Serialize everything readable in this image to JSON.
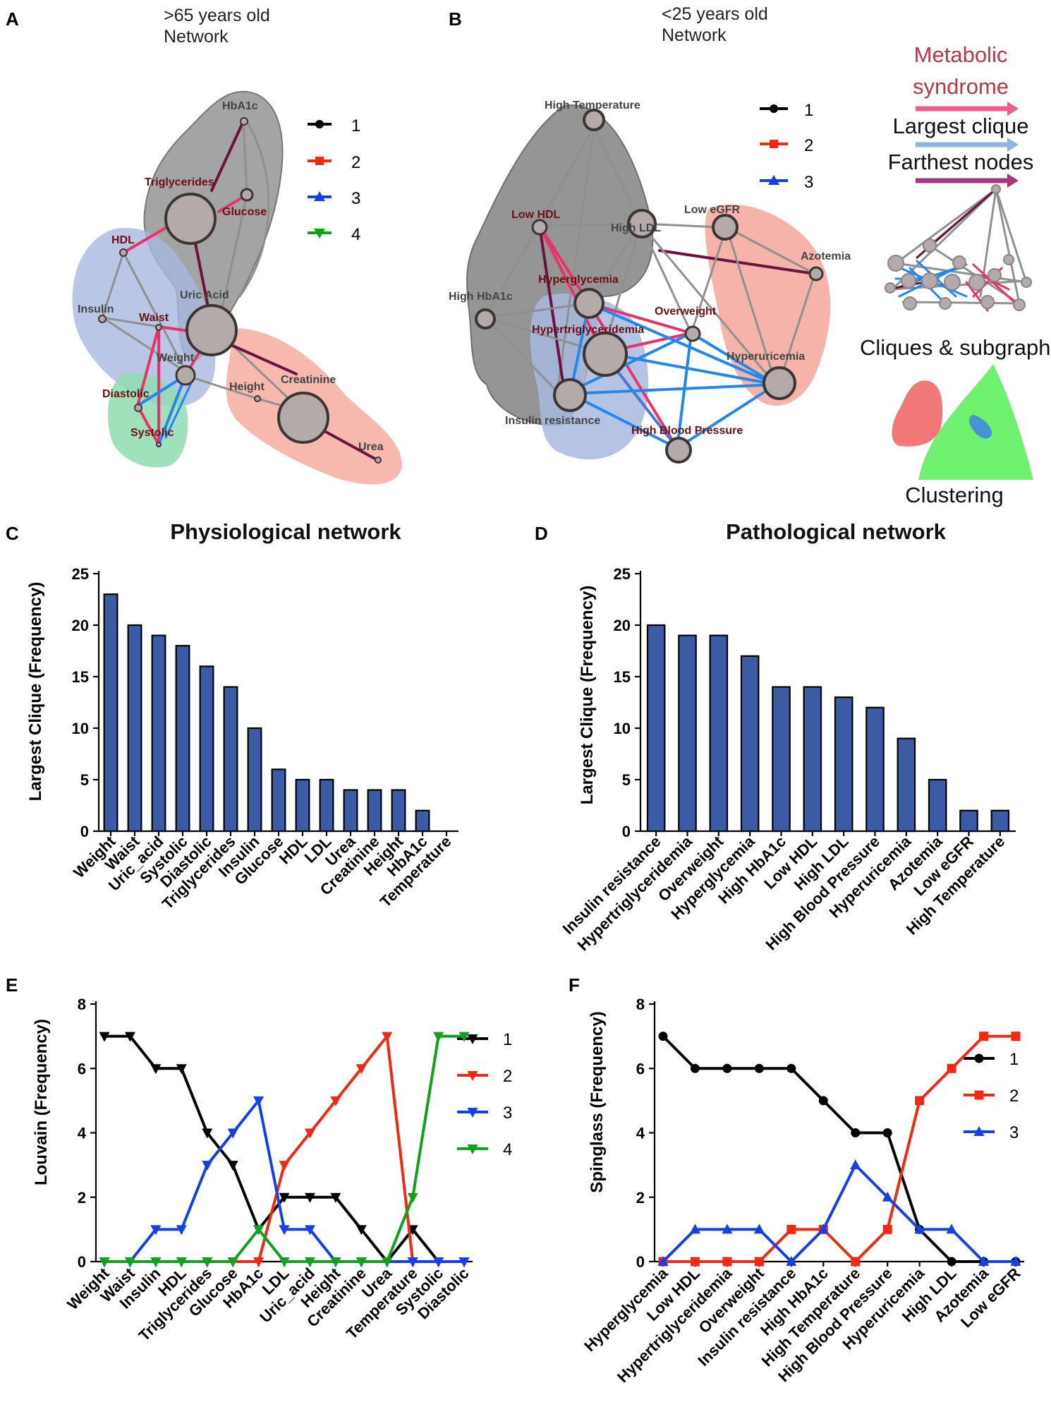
{
  "panels": {
    "A": {
      "letter": "A",
      "title_line1": ">65 years old",
      "title_line2": "Network",
      "legend": [
        "1",
        "2",
        "3",
        "4"
      ],
      "nodes": [
        "HbA1c",
        "Triglycerides",
        "Glucose",
        "HDL",
        "Uric Acid",
        "Insulin",
        "Waist",
        "Weight",
        "Creatinine",
        "Height",
        "Diastolic",
        "Systolic",
        "Urea"
      ]
    },
    "B": {
      "letter": "B",
      "title_line1": "<25 years old",
      "title_line2": "Network",
      "legend": [
        "1",
        "2",
        "3"
      ],
      "nodes": [
        "High Temperature",
        "Low HDL",
        "High LDL",
        "Low eGFR",
        "Azotemia",
        "Hyperglycemia",
        "High HbA1c",
        "Overweight",
        "Hypertriglyceridemia",
        "Hyperuricemia",
        "Insulin resistance",
        "High Blood Pressure"
      ],
      "side_labels": {
        "metabolic_line1": "Metabolic",
        "metabolic_line2": "syndrome",
        "largest_clique": "Largest clique",
        "farthest_nodes": "Farthest nodes",
        "cliques": "Cliques & subgraphs",
        "clustering": "Clustering"
      }
    },
    "C": {
      "letter": "C"
    },
    "D": {
      "letter": "D"
    },
    "E": {
      "letter": "E"
    },
    "F": {
      "letter": "F"
    }
  },
  "colors": {
    "bar_fill": "#3b5ba5",
    "series1": "#000000",
    "series2": "#ee2a12",
    "series3": "#1440e6",
    "series4": "#11a11c",
    "cluster_gray": "#8a8a8a",
    "cluster_blue": "#a8b8e0",
    "cluster_red": "#f5a69a",
    "cluster_green": "#8fdcb0",
    "edge_pink": "#e8336a",
    "edge_dark": "#6a1240",
    "edge_blue": "#2288ee",
    "edge_gray": "#909090",
    "node_fill": "#b4aaaa",
    "node_stroke": "#3d3434"
  },
  "chart_data": [
    {
      "id": "C",
      "type": "bar",
      "title": "Physiological network",
      "xlabel": "",
      "ylabel": "Largest Clique (Frequency)",
      "ylim": [
        0,
        25
      ],
      "yticks": [
        0,
        5,
        10,
        15,
        20,
        25
      ],
      "categories": [
        "Weight",
        "Waist",
        "Uric_acid",
        "Systolic",
        "Diastolic",
        "Triglycerides",
        "Insulin",
        "Glucose",
        "HDL",
        "LDL",
        "Urea",
        "Creatinine",
        "Height",
        "HbA1c",
        "Temperature"
      ],
      "values": [
        23,
        20,
        19,
        18,
        16,
        14,
        10,
        6,
        5,
        5,
        4,
        4,
        4,
        2,
        0
      ]
    },
    {
      "id": "D",
      "type": "bar",
      "title": "Pathological network",
      "xlabel": "",
      "ylabel": "Largest Clique (Frequency)",
      "ylim": [
        0,
        25
      ],
      "yticks": [
        0,
        5,
        10,
        15,
        20,
        25
      ],
      "categories": [
        "Insulin resistance",
        "Hypertriglyceridemia",
        "Overweight",
        "Hyperglycemia",
        "High HbA1c",
        "Low HDL",
        "High LDL",
        "High Blood Pressure",
        "Hyperuricemia",
        "Azotemia",
        "Low eGFR",
        "High Temperature"
      ],
      "values": [
        20,
        19,
        19,
        17,
        14,
        14,
        13,
        12,
        9,
        5,
        2,
        2
      ]
    },
    {
      "id": "E",
      "type": "line",
      "title": "",
      "xlabel": "",
      "ylabel": "Louvain (Frequency)",
      "ylim": [
        0,
        8
      ],
      "yticks": [
        0,
        2,
        4,
        6,
        8
      ],
      "marker": "triangle-down",
      "categories": [
        "Weight",
        "Waist",
        "Insulin",
        "HDL",
        "Triglycerides",
        "Glucose",
        "HbA1c",
        "LDL",
        "Uric_acid",
        "Height",
        "Creatinine",
        "Urea",
        "Temperature",
        "Systolic",
        "Diastolic"
      ],
      "series": [
        {
          "name": "1",
          "values": [
            7,
            7,
            6,
            6,
            4,
            3,
            1,
            2,
            2,
            2,
            1,
            0,
            1,
            0,
            0
          ]
        },
        {
          "name": "2",
          "values": [
            0,
            0,
            0,
            0,
            0,
            0,
            0,
            3,
            4,
            5,
            6,
            7,
            0,
            0,
            0
          ]
        },
        {
          "name": "3",
          "values": [
            0,
            0,
            1,
            1,
            3,
            4,
            5,
            1,
            1,
            0,
            0,
            0,
            0,
            0,
            0
          ]
        },
        {
          "name": "4",
          "values": [
            0,
            0,
            0,
            0,
            0,
            0,
            1,
            0,
            0,
            0,
            0,
            0,
            2,
            7,
            7
          ]
        }
      ]
    },
    {
      "id": "F",
      "type": "line",
      "title": "",
      "xlabel": "",
      "ylabel": "Spinglass (Frequency)",
      "ylim": [
        0,
        8
      ],
      "yticks": [
        0,
        2,
        4,
        6,
        8
      ],
      "markers": [
        "circle",
        "square",
        "triangle-up"
      ],
      "categories": [
        "Hyperglycemia",
        "Low HDL",
        "Hypertriglyceridemia",
        "Overweight",
        "Insulin resistance",
        "High HbA1c",
        "High Temperature",
        "High Blood Pressure",
        "Hyperuricemia",
        "High LDL",
        "Azotemia",
        "Low eGFR"
      ],
      "series": [
        {
          "name": "1",
          "values": [
            7,
            6,
            6,
            6,
            6,
            5,
            4,
            4,
            1,
            0,
            0,
            0
          ]
        },
        {
          "name": "2",
          "values": [
            0,
            0,
            0,
            0,
            1,
            1,
            0,
            1,
            5,
            6,
            7,
            7
          ]
        },
        {
          "name": "3",
          "values": [
            0,
            1,
            1,
            1,
            0,
            1,
            3,
            2,
            1,
            1,
            0,
            0
          ]
        }
      ]
    }
  ]
}
